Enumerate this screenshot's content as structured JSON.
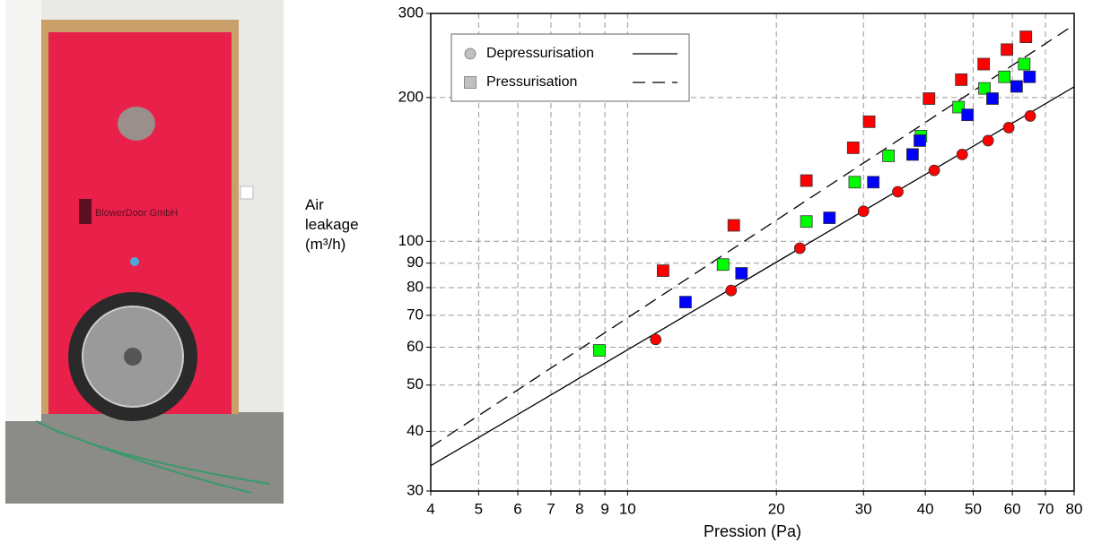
{
  "photo": {
    "brand": "BlowerDoor GmbH"
  },
  "chart_data": {
    "type": "scatter",
    "xlabel": "Pression (Pa)",
    "ylabel": "Air leakage (m³/h)",
    "xscale": "log",
    "yscale": "log",
    "grid": true,
    "legend_position": "upper-left",
    "xlim": [
      4,
      80
    ],
    "xticks": [
      4,
      5,
      6,
      7,
      8,
      9,
      10,
      20,
      30,
      40,
      50,
      60,
      70,
      80
    ],
    "ylim": [
      30,
      300
    ],
    "yticks": [
      30,
      40,
      50,
      60,
      70,
      80,
      90,
      100,
      200,
      300
    ],
    "fits": [
      {
        "name": "Depressurisation",
        "marker": "circle",
        "dash": "solid",
        "color": "#000000",
        "x": [
          4,
          80
        ],
        "values": [
          33.9,
          210.6
        ]
      },
      {
        "name": "Pressurisation",
        "marker": "square",
        "dash": "dashed",
        "color": "#000000",
        "x": [
          4,
          80
        ],
        "values": [
          37.1,
          284
        ]
      }
    ],
    "series": [
      {
        "marker": "circle",
        "color": "#ff0000",
        "x": [
          11.4,
          16.2,
          22.3,
          30.0,
          35.2,
          41.7,
          47.5,
          53.6,
          59,
          65.2
        ],
        "values": [
          62.3,
          78.9,
          96.7,
          115.6,
          127,
          140.8,
          152,
          162.5,
          173,
          183
        ]
      },
      {
        "marker": "square",
        "color": "#ff0000",
        "x": [
          11.8,
          16.4,
          23.0,
          28.6,
          30.8,
          40.7,
          47.3,
          52.5,
          58.5,
          63.9
        ],
        "values": [
          86.8,
          108,
          134,
          157,
          178,
          199,
          218,
          235,
          252,
          268
        ]
      },
      {
        "marker": "square",
        "color": "#00ff00",
        "x": [
          8.77,
          15.6,
          23.0,
          28.8,
          33.7,
          39.2,
          46.7,
          52.7,
          57.8,
          63.4
        ],
        "values": [
          59.1,
          89.4,
          110,
          133,
          151,
          166,
          191,
          209,
          221,
          235
        ]
      },
      {
        "marker": "square",
        "color": "#0000ff",
        "x": [
          13.1,
          17.0,
          25.6,
          31.4,
          37.7,
          39.0,
          48.7,
          54.7,
          61.2,
          65
        ],
        "values": [
          74.6,
          85.7,
          112,
          133,
          152,
          162.5,
          184,
          199,
          211,
          221
        ]
      }
    ]
  }
}
